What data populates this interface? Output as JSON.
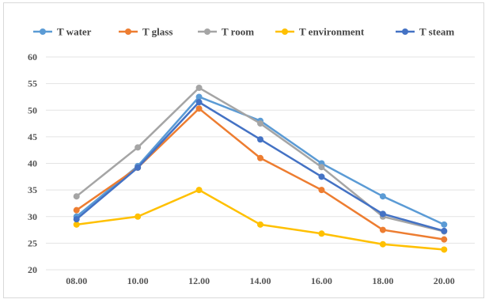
{
  "chart_data": {
    "type": "line",
    "title": "",
    "xlabel": "",
    "ylabel": "",
    "categories": [
      "08.00",
      "10.00",
      "12.00",
      "14.00",
      "16.00",
      "18.00",
      "20.00"
    ],
    "ylim": [
      20,
      60
    ],
    "yticks": [
      "60",
      "55",
      "50",
      "45",
      "40",
      "35",
      "30",
      "25",
      "20"
    ],
    "grid": true,
    "legend_position": "top",
    "series": [
      {
        "name": "T water",
        "color": "#5b9bd5",
        "values": [
          30.0,
          39.5,
          52.5,
          48.0,
          40.0,
          33.8,
          28.5
        ]
      },
      {
        "name": "T glass",
        "color": "#ed7d31",
        "values": [
          31.2,
          39.2,
          50.3,
          41.0,
          35.0,
          27.5,
          25.7
        ]
      },
      {
        "name": "T room",
        "color": "#a5a5a5",
        "values": [
          33.8,
          43.0,
          54.2,
          47.5,
          39.3,
          30.0,
          27.2
        ]
      },
      {
        "name": "T environment",
        "color": "#ffc000",
        "values": [
          28.5,
          30.0,
          35.0,
          28.5,
          26.8,
          24.8,
          23.8
        ]
      },
      {
        "name": "T steam",
        "color": "#4472c4",
        "values": [
          29.5,
          39.2,
          51.5,
          44.5,
          37.5,
          30.5,
          27.3
        ]
      }
    ]
  }
}
